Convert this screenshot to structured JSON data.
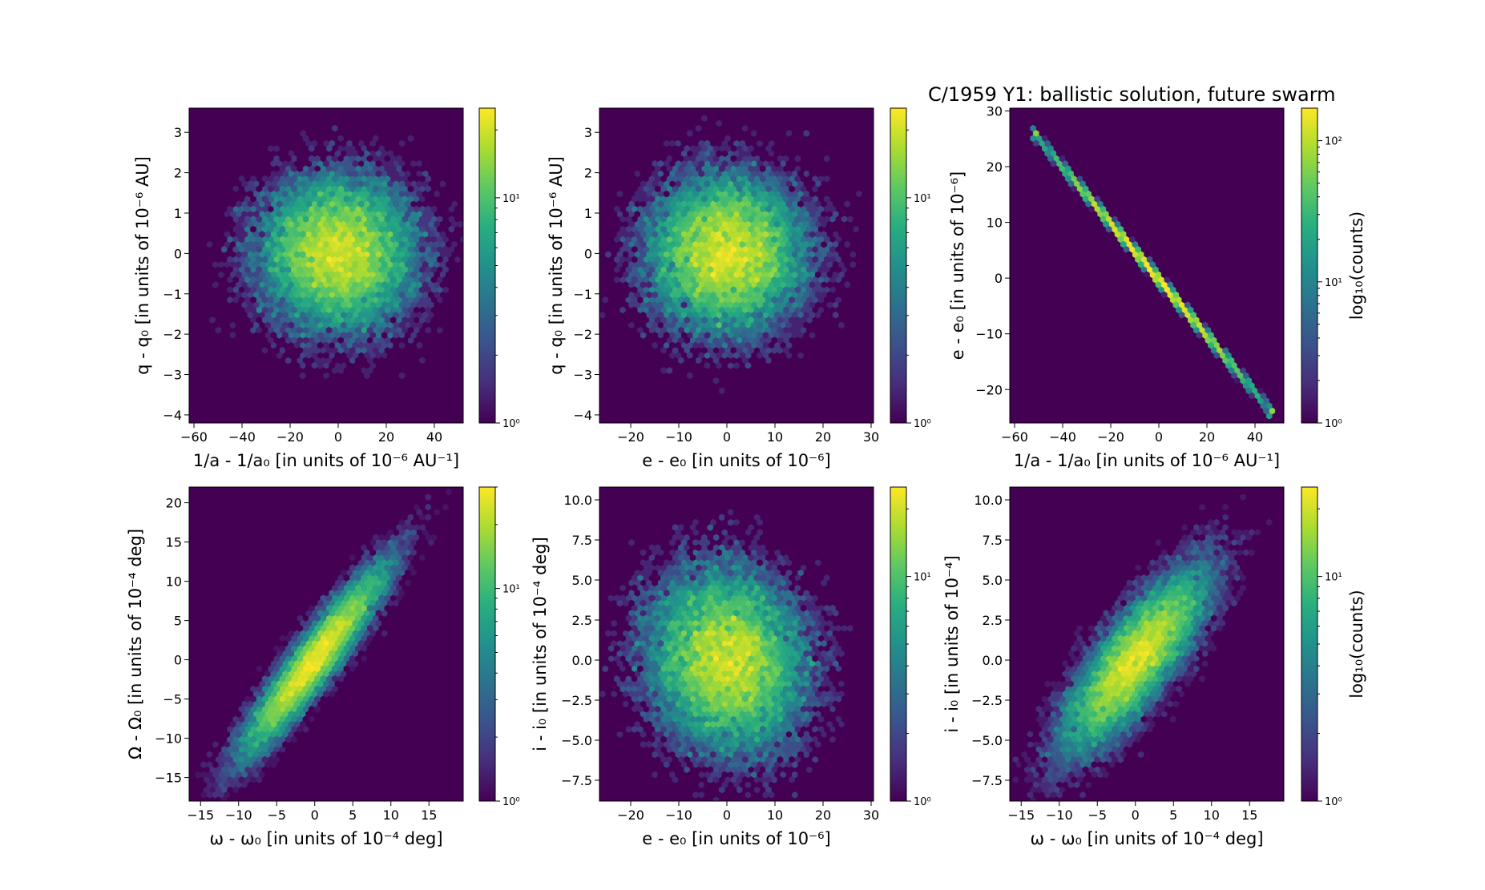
{
  "figure": {
    "title": "C/1959 Y1:  ballistic solution, future swarm"
  },
  "colormap": {
    "name": "viridis",
    "low": "#440154",
    "high": "#fde725"
  },
  "chart_data": [
    {
      "type": "heatmap",
      "variant": "hexbin-log",
      "xlabel": "1/a - 1/a₀ [in units of 10⁻⁶ AU⁻¹]",
      "ylabel": "q - q₀ [in units of 10⁻⁶ AU]",
      "xlim": [
        -62,
        52
      ],
      "ylim": [
        -4.2,
        3.6
      ],
      "xticks": [
        -60,
        -40,
        -20,
        0,
        20,
        40
      ],
      "xtick_labels": [
        "−60",
        "−40",
        "−20",
        "0",
        "20",
        "40"
      ],
      "yticks": [
        -4,
        -3,
        -2,
        -1,
        0,
        1,
        2,
        3
      ],
      "ytick_labels": [
        "−4",
        "−3",
        "−2",
        "−1",
        "0",
        "1",
        "2",
        "3"
      ],
      "distribution": {
        "shape": "gaussian-blob",
        "center": [
          0,
          0
        ],
        "sx": 17,
        "sy": 1.0,
        "rho": 0
      },
      "colorbar": {
        "scale": "log",
        "range": [
          1,
          25
        ],
        "tick_labels": [
          "10⁰",
          "10¹"
        ],
        "label": ""
      }
    },
    {
      "type": "heatmap",
      "variant": "hexbin-log",
      "xlabel": "e - e₀ [in units of 10⁻⁶]",
      "ylabel": "q - q₀ [in units of 10⁻⁶ AU]",
      "xlim": [
        -26.5,
        30.5
      ],
      "ylim": [
        -4.2,
        3.6
      ],
      "xticks": [
        -20,
        -10,
        0,
        10,
        20,
        30
      ],
      "xtick_labels": [
        "−20",
        "−10",
        "0",
        "10",
        "20",
        "30"
      ],
      "yticks": [
        -4,
        -3,
        -2,
        -1,
        0,
        1,
        2,
        3
      ],
      "ytick_labels": [
        "−4",
        "−3",
        "−2",
        "−1",
        "0",
        "1",
        "2",
        "3"
      ],
      "distribution": {
        "shape": "gaussian-blob",
        "center": [
          0,
          0
        ],
        "sx": 8.5,
        "sy": 1.0,
        "rho": 0
      },
      "colorbar": {
        "scale": "log",
        "range": [
          1,
          25
        ],
        "tick_labels": [
          "10⁰",
          "10¹"
        ],
        "label": ""
      }
    },
    {
      "type": "heatmap",
      "variant": "hexbin-log",
      "xlabel": "1/a - 1/a₀ [in units of 10⁻⁶ AU⁻¹]",
      "ylabel": "e - e₀ [in units of 10⁻⁶]",
      "xlim": [
        -62,
        52
      ],
      "ylim": [
        -26,
        30.5
      ],
      "xticks": [
        -60,
        -40,
        -20,
        0,
        20,
        40
      ],
      "xtick_labels": [
        "−60",
        "−40",
        "−20",
        "0",
        "20",
        "40"
      ],
      "yticks": [
        -20,
        -10,
        0,
        10,
        20,
        30
      ],
      "ytick_labels": [
        "−20",
        "−10",
        "0",
        "10",
        "20",
        "30"
      ],
      "distribution": {
        "shape": "line",
        "from": [
          -52,
          26
        ],
        "to": [
          47,
          -24
        ],
        "spread": 0.35
      },
      "colorbar": {
        "scale": "log",
        "range": [
          1,
          170
        ],
        "tick_labels": [
          "10⁰",
          "10¹",
          "10²"
        ],
        "label": "log₁₀(counts)"
      }
    },
    {
      "type": "heatmap",
      "variant": "hexbin-log",
      "xlabel": "ω - ω₀ [in units of 10⁻⁴ deg]",
      "ylabel": "Ω - Ω₀ [in units of 10⁻⁴ deg]",
      "xlim": [
        -16.5,
        19.5
      ],
      "ylim": [
        -18,
        22
      ],
      "xticks": [
        -15,
        -10,
        -5,
        0,
        5,
        10,
        15
      ],
      "xtick_labels": [
        "−15",
        "−10",
        "−5",
        "0",
        "5",
        "10",
        "15"
      ],
      "yticks": [
        -15,
        -10,
        -5,
        0,
        5,
        10,
        15,
        20
      ],
      "ytick_labels": [
        "−15",
        "−10",
        "−5",
        "0",
        "5",
        "10",
        "15",
        "20"
      ],
      "distribution": {
        "shape": "gaussian-blob",
        "center": [
          0,
          0
        ],
        "sx": 5.0,
        "sy": 6.3,
        "rho": 0.93
      },
      "colorbar": {
        "scale": "log",
        "range": [
          1,
          30
        ],
        "tick_labels": [
          "10⁰",
          "10¹"
        ],
        "label": ""
      }
    },
    {
      "type": "heatmap",
      "variant": "hexbin-log",
      "xlabel": "e - e₀ [in units of 10⁻⁶]",
      "ylabel": "i - i₀ [in units of 10⁻⁴ deg]",
      "xlim": [
        -26.5,
        30.5
      ],
      "ylim": [
        -8.8,
        10.8
      ],
      "xticks": [
        -20,
        -10,
        0,
        10,
        20,
        30
      ],
      "xtick_labels": [
        "−20",
        "−10",
        "0",
        "10",
        "20",
        "30"
      ],
      "yticks": [
        -7.5,
        -5.0,
        -2.5,
        0.0,
        2.5,
        5.0,
        7.5,
        10.0
      ],
      "ytick_labels": [
        "−7.5",
        "−5.0",
        "−2.5",
        "0.0",
        "2.5",
        "5.0",
        "7.5",
        "10.0"
      ],
      "distribution": {
        "shape": "gaussian-blob",
        "center": [
          0,
          0
        ],
        "sx": 8.5,
        "sy": 3.0,
        "rho": -0.1
      },
      "colorbar": {
        "scale": "log",
        "range": [
          1,
          25
        ],
        "tick_labels": [
          "10⁰",
          "10¹"
        ],
        "label": ""
      }
    },
    {
      "type": "heatmap",
      "variant": "hexbin-log",
      "xlabel": "ω - ω₀ [in units of 10⁻⁴ deg]",
      "ylabel": "i - i₀ [in units of 10⁻⁴]",
      "xlim": [
        -16.5,
        19.5
      ],
      "ylim": [
        -8.8,
        10.8
      ],
      "xticks": [
        -15,
        -10,
        -5,
        0,
        5,
        10,
        15
      ],
      "xtick_labels": [
        "−15",
        "−10",
        "−5",
        "0",
        "5",
        "10",
        "15"
      ],
      "yticks": [
        -7.5,
        -5.0,
        -2.5,
        0.0,
        2.5,
        5.0,
        7.5,
        10.0
      ],
      "ytick_labels": [
        "−7.5",
        "−5.0",
        "−2.5",
        "0.0",
        "2.5",
        "5.0",
        "7.5",
        "10.0"
      ],
      "distribution": {
        "shape": "gaussian-blob",
        "center": [
          0,
          0
        ],
        "sx": 5.0,
        "sy": 3.0,
        "rho": 0.8
      },
      "colorbar": {
        "scale": "log",
        "range": [
          1,
          25
        ],
        "tick_labels": [
          "10⁰",
          "10¹"
        ],
        "label": "log₁₀(counts)"
      }
    }
  ]
}
